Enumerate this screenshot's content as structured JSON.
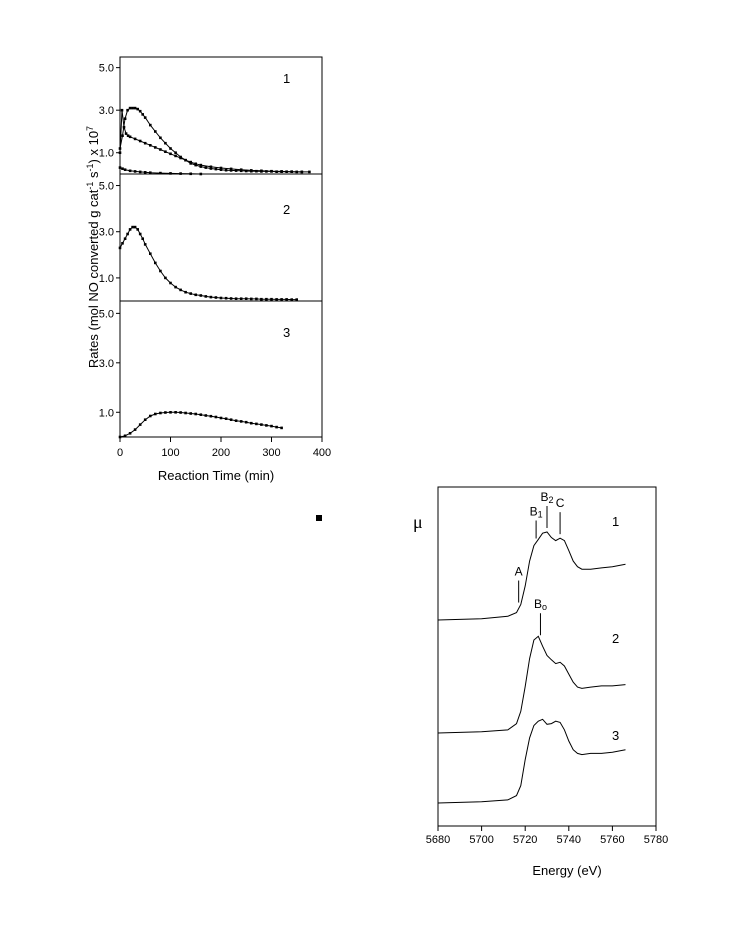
{
  "left_chart": {
    "type": "line",
    "ylabel_main": "Rates (mol NO converted g cat",
    "ylabel_sup1": "-1",
    "ylabel_mid": " s",
    "ylabel_sup2": "-1",
    "ylabel_end": ") x 10",
    "ylabel_sup3": "7",
    "xlabel": "Reaction Time (min)",
    "xlim": [
      0,
      400
    ],
    "x_ticks": [
      "0",
      "100",
      "200",
      "300",
      "400"
    ],
    "y_ticks": [
      "5.0",
      "3.0",
      "1.0"
    ],
    "panels": [
      {
        "label": "1",
        "ylim": [
          0,
          5.5
        ],
        "series": [
          {
            "x": [
              0,
              5,
              10,
              15,
              20,
              25,
              30,
              35,
              40,
              45,
              50,
              60,
              70,
              80,
              90,
              100,
              110,
              120,
              130,
              140,
              150,
              160,
              170,
              180,
              190,
              200,
              210,
              220,
              230,
              240,
              250,
              260,
              270,
              280,
              290,
              300,
              310,
              320,
              330,
              340,
              350,
              360
            ],
            "y": [
              1.2,
              1.8,
              2.6,
              3.0,
              3.1,
              3.1,
              3.1,
              3.05,
              2.95,
              2.8,
              2.65,
              2.3,
              2.0,
              1.7,
              1.45,
              1.2,
              1.0,
              0.8,
              0.65,
              0.5,
              0.42,
              0.35,
              0.3,
              0.26,
              0.23,
              0.2,
              0.18,
              0.17,
              0.16,
              0.15,
              0.14,
              0.13,
              0.13,
              0.12,
              0.12,
              0.12,
              0.11,
              0.11,
              0.11,
              0.11,
              0.1,
              0.1
            ]
          },
          {
            "x": [
              0,
              4,
              8,
              12,
              16,
              20,
              30,
              40,
              50,
              60,
              70,
              80,
              90,
              100,
              110,
              120,
              130,
              140,
              150,
              160,
              180,
              200,
              220,
              240,
              260,
              280,
              300,
              320,
              340,
              360,
              375
            ],
            "y": [
              1.0,
              3.0,
              2.2,
              1.9,
              1.8,
              1.75,
              1.65,
              1.55,
              1.45,
              1.35,
              1.25,
              1.15,
              1.05,
              0.95,
              0.85,
              0.75,
              0.65,
              0.56,
              0.48,
              0.42,
              0.34,
              0.28,
              0.24,
              0.2,
              0.17,
              0.15,
              0.13,
              0.12,
              0.11,
              0.1,
              0.1
            ]
          },
          {
            "x": [
              0,
              5,
              10,
              20,
              30,
              40,
              50,
              60,
              80,
              100,
              120,
              140,
              160
            ],
            "y": [
              0.3,
              0.25,
              0.2,
              0.15,
              0.12,
              0.1,
              0.08,
              0.06,
              0.04,
              0.03,
              0.02,
              0.01,
              0.0
            ]
          }
        ]
      },
      {
        "label": "2",
        "ylim": [
          0,
          5.5
        ],
        "series": [
          {
            "x": [
              0,
              5,
              10,
              15,
              20,
              25,
              30,
              35,
              40,
              45,
              50,
              60,
              70,
              80,
              90,
              100,
              110,
              120,
              130,
              140,
              150,
              160,
              170,
              180,
              190,
              200,
              210,
              220,
              230,
              240,
              250,
              260,
              270,
              280,
              290,
              300,
              310,
              320,
              330,
              340,
              350
            ],
            "y": [
              2.3,
              2.5,
              2.7,
              2.9,
              3.1,
              3.2,
              3.2,
              3.1,
              2.9,
              2.7,
              2.45,
              2.05,
              1.65,
              1.3,
              1.0,
              0.78,
              0.6,
              0.48,
              0.38,
              0.32,
              0.27,
              0.24,
              0.2,
              0.17,
              0.15,
              0.13,
              0.12,
              0.11,
              0.1,
              0.1,
              0.1,
              0.09,
              0.09,
              0.08,
              0.08,
              0.08,
              0.07,
              0.07,
              0.07,
              0.06,
              0.06
            ]
          }
        ]
      },
      {
        "label": "3",
        "ylim": [
          0,
          5.5
        ],
        "series": [
          {
            "x": [
              0,
              10,
              20,
              30,
              40,
              50,
              60,
              70,
              80,
              90,
              100,
              110,
              120,
              130,
              140,
              150,
              160,
              170,
              180,
              190,
              200,
              210,
              220,
              230,
              240,
              250,
              260,
              270,
              280,
              290,
              300,
              310,
              320
            ],
            "y": [
              0.0,
              0.05,
              0.15,
              0.3,
              0.5,
              0.7,
              0.85,
              0.93,
              0.97,
              0.99,
              1.0,
              1.0,
              0.99,
              0.97,
              0.95,
              0.93,
              0.9,
              0.87,
              0.84,
              0.81,
              0.77,
              0.74,
              0.7,
              0.66,
              0.63,
              0.6,
              0.56,
              0.53,
              0.5,
              0.47,
              0.44,
              0.4,
              0.37
            ]
          }
        ]
      }
    ]
  },
  "right_chart": {
    "type": "line",
    "ylabel": "μ",
    "xlabel": "Energy (eV)",
    "xlim": [
      5680,
      5780
    ],
    "x_ticks": [
      "5680",
      "5700",
      "5720",
      "5740",
      "5760",
      "5780"
    ],
    "peak_labels": {
      "A": "A",
      "B1": "B1",
      "B2": "B2",
      "C": "C",
      "B0": "Bo"
    },
    "peak_positions_ev": {
      "A": 5717,
      "B1": 5725,
      "B2": 5730,
      "C": 5736,
      "B0": 5727
    },
    "spectra": [
      {
        "label": "1",
        "offset": 2.0,
        "x": [
          5680,
          5700,
          5712,
          5716,
          5718,
          5720,
          5722,
          5724,
          5726,
          5728,
          5730,
          5732,
          5734,
          5736,
          5738,
          5740,
          5742,
          5744,
          5746,
          5750,
          5755,
          5760,
          5766
        ],
        "y": [
          0,
          0.02,
          0.06,
          0.12,
          0.25,
          0.55,
          0.95,
          1.2,
          1.3,
          1.4,
          1.42,
          1.33,
          1.28,
          1.32,
          1.28,
          1.12,
          0.95,
          0.86,
          0.82,
          0.82,
          0.84,
          0.86,
          0.9
        ]
      },
      {
        "label": "2",
        "offset": 1.0,
        "x": [
          5680,
          5700,
          5712,
          5716,
          5718,
          5720,
          5722,
          5724,
          5726,
          5728,
          5730,
          5732,
          5734,
          5736,
          5738,
          5740,
          5742,
          5744,
          5746,
          5750,
          5755,
          5760,
          5766
        ],
        "y": [
          0,
          0.02,
          0.05,
          0.15,
          0.35,
          0.75,
          1.2,
          1.5,
          1.56,
          1.4,
          1.25,
          1.18,
          1.12,
          1.14,
          1.08,
          0.95,
          0.82,
          0.74,
          0.72,
          0.74,
          0.76,
          0.76,
          0.78
        ]
      },
      {
        "label": "3",
        "offset": 0.0,
        "x": [
          5680,
          5700,
          5712,
          5716,
          5718,
          5720,
          5722,
          5724,
          5726,
          5728,
          5730,
          5732,
          5734,
          5736,
          5738,
          5740,
          5742,
          5744,
          5746,
          5750,
          5755,
          5760,
          5766
        ],
        "y": [
          0,
          0.02,
          0.05,
          0.12,
          0.28,
          0.7,
          1.05,
          1.25,
          1.32,
          1.35,
          1.27,
          1.28,
          1.32,
          1.3,
          1.18,
          1.0,
          0.86,
          0.8,
          0.78,
          0.8,
          0.8,
          0.82,
          0.86
        ]
      }
    ]
  }
}
